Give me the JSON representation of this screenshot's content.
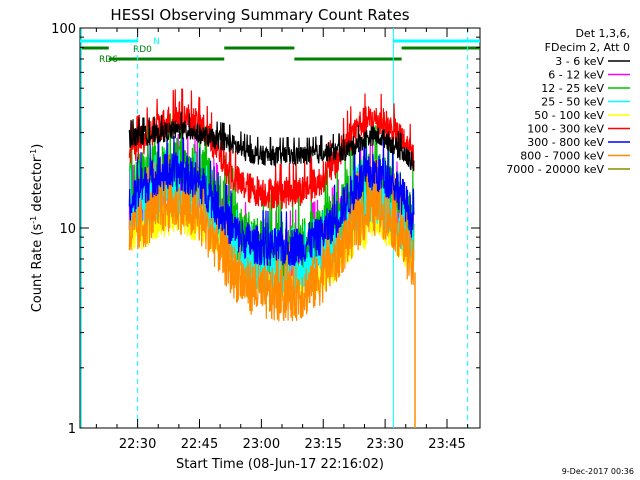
{
  "chart_data": {
    "type": "line",
    "title": "HESSI Observing Summary Count Rates",
    "xlabel": "Start Time (08-Jun-17 22:16:02)",
    "ylabel_main": "Count Rate (s",
    "ylabel_sup1": "-1",
    "ylabel_mid": " detector",
    "ylabel_sup2": "-1",
    "ylabel_end": ")",
    "yscale": "log",
    "xlim": [
      "22:16:02",
      "23:53:00"
    ],
    "ylim": [
      1,
      100
    ],
    "xticks": [
      "22:30",
      "22:45",
      "23:00",
      "23:15",
      "23:30",
      "23:45"
    ],
    "yticks": [
      "1",
      "10",
      "100"
    ],
    "legend_header": [
      "Det 1,3,6,",
      "FDecim 2, Att 0"
    ],
    "legend_position": "right",
    "series": [
      {
        "name": "3 - 6 keV",
        "color": "#000000",
        "x": [
          "22:28",
          "22:30",
          "22:33",
          "22:36",
          "22:40",
          "22:44",
          "22:48",
          "22:52",
          "22:56",
          "23:00",
          "23:04",
          "23:08",
          "23:12",
          "23:16",
          "23:20",
          "23:24",
          "23:27",
          "23:30",
          "23:33",
          "23:36",
          "23:37"
        ],
        "values": [
          28,
          29,
          29,
          30,
          31,
          30,
          28,
          27,
          24,
          23,
          23,
          23,
          23,
          24,
          24,
          27,
          29,
          28,
          25,
          22,
          21
        ]
      },
      {
        "name": "6 - 12 keV",
        "color": "#ff00ff",
        "x": [
          "22:28",
          "22:31",
          "22:34",
          "22:37",
          "22:40",
          "22:43",
          "22:46",
          "22:49",
          "22:52",
          "22:55",
          "22:58",
          "23:02",
          "23:06",
          "23:10",
          "23:14",
          "23:18",
          "23:21",
          "23:24",
          "23:27",
          "23:30",
          "23:33",
          "23:36",
          "23:37"
        ],
        "values": [
          12,
          14,
          16,
          17,
          18,
          18,
          16,
          13,
          10,
          8.5,
          7.7,
          7.4,
          7.4,
          7.6,
          8.5,
          10,
          13,
          15,
          16,
          15,
          13,
          10,
          9
        ]
      },
      {
        "name": "12 - 25 keV",
        "color": "#00c000",
        "x": [
          "22:28",
          "22:31",
          "22:34",
          "22:37",
          "22:40",
          "22:43",
          "22:46",
          "22:49",
          "22:52",
          "22:55",
          "22:58",
          "23:02",
          "23:06",
          "23:10",
          "23:14",
          "23:18",
          "23:21",
          "23:24",
          "23:27",
          "23:30",
          "23:33",
          "23:36",
          "23:37"
        ],
        "values": [
          15,
          17,
          18,
          19,
          20,
          19,
          17,
          14,
          11,
          9,
          8,
          7.6,
          7.6,
          7.8,
          9,
          11,
          14,
          16,
          17,
          16,
          14,
          11,
          10
        ]
      },
      {
        "name": "25 - 50 keV",
        "color": "#00ffff",
        "x": [
          "22:28",
          "22:31",
          "22:34",
          "22:37",
          "22:40",
          "22:43",
          "22:46",
          "22:49",
          "22:52",
          "22:55",
          "22:58",
          "23:02",
          "23:06",
          "23:10",
          "23:14",
          "23:18",
          "23:21",
          "23:24",
          "23:27",
          "23:30",
          "23:33",
          "23:36",
          "23:37"
        ],
        "values": [
          12,
          13,
          14,
          15,
          15,
          15,
          13,
          11,
          8.5,
          7,
          6.3,
          6,
          6,
          6.2,
          7,
          8.5,
          11,
          13,
          14,
          13,
          11,
          8.5,
          8
        ]
      },
      {
        "name": "50 - 100 keV",
        "color": "#ffff00",
        "x": [
          "22:28",
          "22:40",
          "22:52",
          "23:04",
          "23:16",
          "23:28",
          "23:37"
        ],
        "values": [
          9,
          12,
          8,
          5.5,
          6,
          11,
          7
        ]
      },
      {
        "name": "100 - 300 keV",
        "color": "#ff0000",
        "x": [
          "22:28",
          "22:31",
          "22:34",
          "22:37",
          "22:40",
          "22:43",
          "22:46",
          "22:49",
          "22:52",
          "22:55",
          "22:58",
          "23:02",
          "23:06",
          "23:10",
          "23:14",
          "23:18",
          "23:21",
          "23:24",
          "23:27",
          "23:30",
          "23:33",
          "23:36",
          "23:37"
        ],
        "values": [
          24,
          27,
          31,
          34,
          36,
          35,
          31,
          25,
          19,
          16.5,
          15.5,
          15,
          15,
          15.5,
          17,
          21,
          28,
          33,
          35,
          33,
          29,
          24,
          22
        ]
      },
      {
        "name": "300 - 800 keV",
        "color": "#0000ff",
        "x": [
          "22:28",
          "22:31",
          "22:34",
          "22:37",
          "22:40",
          "22:43",
          "22:46",
          "22:49",
          "22:52",
          "22:55",
          "22:58",
          "23:02",
          "23:06",
          "23:10",
          "23:14",
          "23:18",
          "23:21",
          "23:24",
          "23:27",
          "23:30",
          "23:33",
          "23:36",
          "23:37"
        ],
        "values": [
          13,
          16,
          18,
          19,
          19,
          18,
          16,
          13,
          10.5,
          9,
          8.3,
          8,
          8,
          8.2,
          9,
          11,
          14,
          17,
          19,
          18,
          16,
          12,
          10
        ]
      },
      {
        "name": "800 - 7000 keV",
        "color": "#ff8c00",
        "x": [
          "22:28",
          "22:31",
          "22:34",
          "22:37",
          "22:40",
          "22:43",
          "22:46",
          "22:49",
          "22:52",
          "22:55",
          "22:58",
          "23:02",
          "23:06",
          "23:10",
          "23:14",
          "23:18",
          "23:21",
          "23:24",
          "23:27",
          "23:30",
          "23:33",
          "23:36",
          "23:37"
        ],
        "values": [
          9,
          10.5,
          12,
          13,
          13,
          12,
          10.5,
          8.5,
          6.5,
          5.5,
          5,
          4.6,
          4.6,
          4.8,
          5.5,
          7,
          9,
          11,
          12.5,
          12,
          10,
          7,
          6
        ]
      },
      {
        "name": "7000 - 20000 keV",
        "color": "#8b8b00",
        "x": [],
        "values": []
      }
    ],
    "flags": [
      {
        "label": "N",
        "color": "#00ffff",
        "segments": [
          [
            "22:16:02",
            "22:30:00"
          ],
          [
            "23:32:00",
            "23:53:00"
          ]
        ]
      },
      {
        "label": "RD0",
        "color": "#008000",
        "segments": [
          [
            "22:16:02",
            "22:23:00"
          ],
          [
            "22:51:00",
            "23:08:00"
          ],
          [
            "23:34:00",
            "23:53:00"
          ]
        ]
      },
      {
        "label": "RD6",
        "color": "#008000",
        "segments": [
          [
            "22:23:00",
            "22:51:00"
          ],
          [
            "23:08:00",
            "23:34:00"
          ]
        ]
      }
    ],
    "vlines": [
      {
        "at": "22:16:20",
        "color": "#00ffff",
        "style": "solid"
      },
      {
        "at": "22:30:00",
        "color": "#00ffff",
        "style": "dashed"
      },
      {
        "at": "23:32:00",
        "color": "#00ffff",
        "style": "solid"
      },
      {
        "at": "23:50:00",
        "color": "#00ffff",
        "style": "dashed"
      }
    ]
  },
  "footer_date": "9-Dec-2017 00:36"
}
